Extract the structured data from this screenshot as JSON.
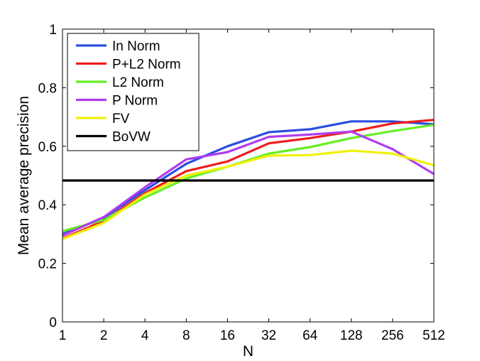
{
  "chart_data": {
    "type": "line",
    "xlabel": "N",
    "ylabel": "Mean average precision",
    "x_scale": "log2",
    "x_ticks": [
      "1",
      "2",
      "4",
      "8",
      "16",
      "32",
      "64",
      "128",
      "256",
      "512"
    ],
    "x": [
      1,
      2,
      4,
      8,
      16,
      32,
      64,
      128,
      256,
      512
    ],
    "ylim": [
      0,
      1
    ],
    "y_ticks": [
      "0",
      "0.2",
      "0.4",
      "0.6",
      "0.8",
      "1"
    ],
    "grid": false,
    "legend_position": "top-left",
    "series": [
      {
        "name": "In Norm",
        "color": "#2b4de0",
        "values": [
          0.3,
          0.355,
          0.45,
          0.54,
          0.6,
          0.648,
          0.658,
          0.685,
          0.685,
          0.675
        ]
      },
      {
        "name": "P+L2 Norm",
        "color": "#ee1c1c",
        "values": [
          0.285,
          0.345,
          0.44,
          0.515,
          0.548,
          0.61,
          0.628,
          0.65,
          0.678,
          0.69
        ]
      },
      {
        "name": "L2 Norm",
        "color": "#66ee22",
        "values": [
          0.31,
          0.348,
          0.425,
          0.49,
          0.53,
          0.575,
          0.597,
          0.628,
          0.652,
          0.673
        ]
      },
      {
        "name": "P Norm",
        "color": "#b03cf0",
        "values": [
          0.295,
          0.358,
          0.46,
          0.555,
          0.58,
          0.632,
          0.64,
          0.65,
          0.59,
          0.505
        ]
      },
      {
        "name": "FV",
        "color": "#f0f00a",
        "values": [
          0.283,
          0.338,
          0.435,
          0.5,
          0.53,
          0.568,
          0.57,
          0.585,
          0.575,
          0.535
        ]
      },
      {
        "name": "BoVW",
        "color": "#000000",
        "values": [
          0.483,
          0.483,
          0.483,
          0.483,
          0.483,
          0.483,
          0.483,
          0.483,
          0.483,
          0.483
        ]
      }
    ]
  }
}
